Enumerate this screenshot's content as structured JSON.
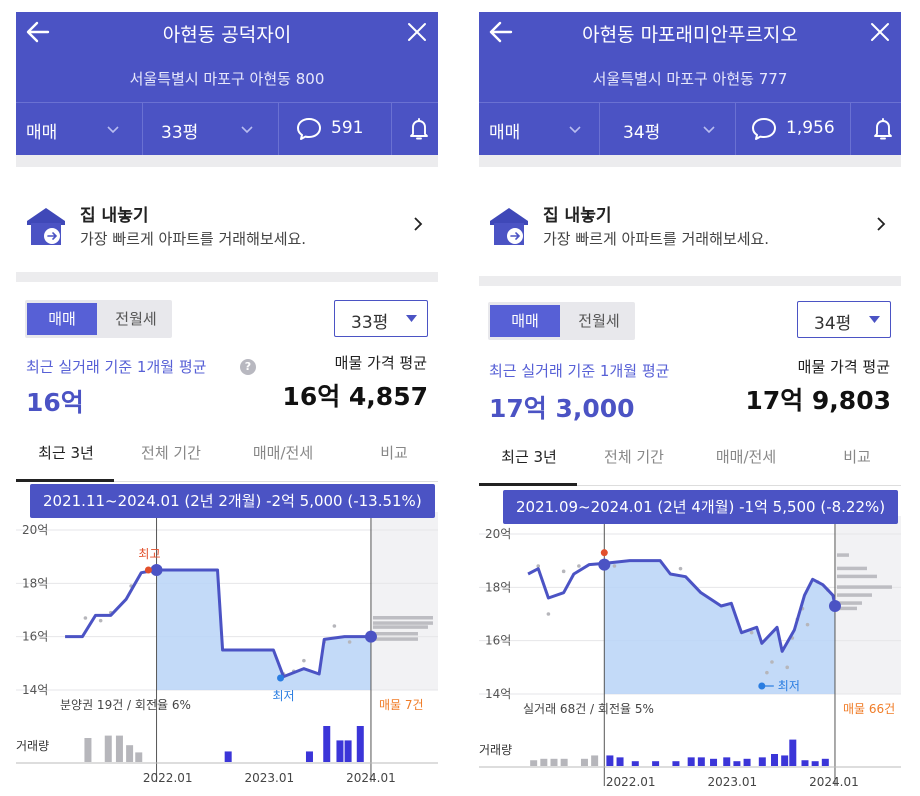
{
  "colors": {
    "brand": "#4b53c4",
    "accent": "#5760d6",
    "low_marker": "#2a7de1",
    "high_marker": "#e2502c",
    "asking": "#f07c27",
    "fill": "#b8d3f7"
  },
  "panels": [
    {
      "header": {
        "title": "아현동 공덕자이",
        "address": "서울특별시 마포구 아현동 800",
        "deal_type": "매매",
        "size": "33평",
        "comments": "591"
      },
      "listing": {
        "title": "집 내놓기",
        "subtitle": "가장 빠르게 아파트를 거래해보세요."
      },
      "seg": {
        "active": "매매",
        "inactive": "전월세"
      },
      "size_select": "33평",
      "avg_label": "최근 실거래 기준 1개월 평균",
      "avg_value": "16억",
      "ask_label": "매물 가격 평균",
      "ask_value": "16억 4,857",
      "tabs": [
        "최근 3년",
        "전체 기간",
        "매매/전세",
        "비교"
      ],
      "tooltip": "2021.11~2024.01 (2년 2개월)  -2억 5,000 (-13.51%)",
      "chart_data": {
        "type": "line",
        "y_unit": "억",
        "ylim": [
          14,
          20
        ],
        "y_ticks": [
          "20억",
          "18억",
          "16억",
          "14억"
        ],
        "x_ticks": [
          "2022.01",
          "2023.01",
          "2024.01"
        ],
        "series": [
          {
            "points": [
              [
                2021.0,
                16.0
              ],
              [
                2021.17,
                16.0
              ],
              [
                2021.3,
                16.8
              ],
              [
                2021.45,
                16.8
              ],
              [
                2021.6,
                17.4
              ],
              [
                2021.75,
                18.4
              ],
              [
                2021.9,
                18.5
              ],
              [
                2022.2,
                18.5
              ],
              [
                2022.5,
                18.5
              ],
              [
                2022.55,
                15.5
              ],
              [
                2022.9,
                15.5
              ],
              [
                2023.05,
                15.5
              ],
              [
                2023.15,
                14.5
              ],
              [
                2023.35,
                14.8
              ],
              [
                2023.5,
                14.6
              ],
              [
                2023.55,
                15.9
              ],
              [
                2023.75,
                16.0
              ],
              [
                2024.0,
                16.0
              ],
              [
                2024.01,
                16.0
              ]
            ]
          }
        ],
        "highlight": {
          "start": [
            2021.9,
            18.5
          ],
          "end": [
            2024.01,
            16.0
          ]
        },
        "max": {
          "x": 2021.82,
          "y": 18.5,
          "label": "최고"
        },
        "min": {
          "x": 2023.12,
          "y": 14.45,
          "label": "최저"
        },
        "footer_left": "분양권 19건 / 회전율 6%",
        "footer_right": "매물 7건",
        "volume_label": "거래량",
        "scatter": [
          [
            2021.2,
            16.7
          ],
          [
            2021.35,
            16.6
          ],
          [
            2021.45,
            16.9
          ],
          [
            2021.65,
            17.9
          ],
          [
            2023.15,
            14.6
          ],
          [
            2023.25,
            14.7
          ],
          [
            2023.35,
            15.1
          ],
          [
            2023.55,
            15.8
          ],
          [
            2023.65,
            16.4
          ],
          [
            2023.8,
            15.8
          ]
        ],
        "volume": [
          {
            "x": 2021.22,
            "v": 0.5,
            "k": "g"
          },
          {
            "x": 2021.42,
            "v": 0.55,
            "k": "g"
          },
          {
            "x": 2021.53,
            "v": 0.55,
            "k": "g"
          },
          {
            "x": 2021.63,
            "v": 0.35,
            "k": "g"
          },
          {
            "x": 2021.72,
            "v": 0.2,
            "k": "g"
          },
          {
            "x": 2022.6,
            "v": 0.22,
            "k": "b"
          },
          {
            "x": 2023.4,
            "v": 0.22,
            "k": "b"
          },
          {
            "x": 2023.57,
            "v": 0.75,
            "k": "b"
          },
          {
            "x": 2023.7,
            "v": 0.45,
            "k": "b"
          },
          {
            "x": 2023.78,
            "v": 0.45,
            "k": "b"
          },
          {
            "x": 2023.9,
            "v": 0.75,
            "k": "b"
          }
        ],
        "asking_bars": [
          [
            16.7,
            0.6
          ],
          [
            16.5,
            0.6
          ],
          [
            16.35,
            0.55
          ],
          [
            16.1,
            0.45
          ],
          [
            15.9,
            0.45
          ]
        ],
        "xlim": [
          2020.95,
          2024.65
        ]
      }
    },
    {
      "header": {
        "title": "아현동 마포래미안푸르지오",
        "address": "서울특별시 마포구 아현동 777",
        "deal_type": "매매",
        "size": "34평",
        "comments": "1,956"
      },
      "listing": {
        "title": "집 내놓기",
        "subtitle": "가장 빠르게 아파트를 거래해보세요."
      },
      "seg": {
        "active": "매매",
        "inactive": "전월세"
      },
      "size_select": "34평",
      "avg_label": "최근 실거래 기준 1개월 평균",
      "avg_value": "17억 3,000",
      "ask_label": "매물 가격 평균",
      "ask_value": "17억 9,803",
      "tabs": [
        "최근 3년",
        "전체 기간",
        "매매/전세",
        "비교"
      ],
      "tooltip": "2021.09~2024.01 (2년 4개월)  -1억 5,500 (-8.22%)",
      "chart_data": {
        "type": "line",
        "y_unit": "억",
        "ylim": [
          14,
          20
        ],
        "y_ticks": [
          "20억",
          "18억",
          "16억",
          "14억"
        ],
        "x_ticks": [
          "2022.01",
          "2023.01",
          "2024.01"
        ],
        "series": [
          {
            "points": [
              [
                2021.0,
                18.5
              ],
              [
                2021.1,
                18.7
              ],
              [
                2021.2,
                17.6
              ],
              [
                2021.35,
                17.8
              ],
              [
                2021.45,
                18.5
              ],
              [
                2021.6,
                18.85
              ],
              [
                2021.75,
                18.9
              ],
              [
                2022.0,
                19.0
              ],
              [
                2022.3,
                19.0
              ],
              [
                2022.4,
                18.5
              ],
              [
                2022.55,
                18.4
              ],
              [
                2022.7,
                17.8
              ],
              [
                2022.9,
                17.3
              ],
              [
                2023.0,
                17.4
              ],
              [
                2023.1,
                16.3
              ],
              [
                2023.25,
                16.5
              ],
              [
                2023.3,
                15.9
              ],
              [
                2023.45,
                16.5
              ],
              [
                2023.5,
                15.6
              ],
              [
                2023.62,
                16.4
              ],
              [
                2023.72,
                17.7
              ],
              [
                2023.8,
                18.3
              ],
              [
                2023.9,
                18.1
              ],
              [
                2024.0,
                17.7
              ],
              [
                2024.02,
                17.3
              ]
            ]
          }
        ],
        "highlight": {
          "start": [
            2021.75,
            18.85
          ],
          "end": [
            2024.02,
            17.3
          ]
        },
        "max": {
          "x": 2021.75,
          "y": 19.3,
          "label": ""
        },
        "min": {
          "x": 2023.3,
          "y": 14.3,
          "label": "최저"
        },
        "footer_left": "실거래 68건 / 회전율 5%",
        "footer_right": "매물 66건",
        "volume_label": "거래량",
        "scatter": [
          [
            2021.1,
            18.8
          ],
          [
            2021.2,
            17.0
          ],
          [
            2021.35,
            18.6
          ],
          [
            2021.5,
            18.8
          ],
          [
            2021.85,
            18.8
          ],
          [
            2022.5,
            18.7
          ],
          [
            2023.2,
            16.3
          ],
          [
            2023.35,
            14.8
          ],
          [
            2023.4,
            15.2
          ],
          [
            2023.55,
            15.0
          ],
          [
            2023.6,
            16.1
          ],
          [
            2023.65,
            16.8
          ],
          [
            2023.7,
            17.2
          ],
          [
            2023.75,
            16.6
          ],
          [
            2023.85,
            18.2
          ],
          [
            2023.95,
            17.9
          ]
        ],
        "volume": [
          {
            "x": 2021.05,
            "v": 0.12,
            "k": "g"
          },
          {
            "x": 2021.15,
            "v": 0.15,
            "k": "g"
          },
          {
            "x": 2021.25,
            "v": 0.15,
            "k": "g"
          },
          {
            "x": 2021.35,
            "v": 0.15,
            "k": "g"
          },
          {
            "x": 2021.55,
            "v": 0.15,
            "k": "g"
          },
          {
            "x": 2021.65,
            "v": 0.22,
            "k": "g"
          },
          {
            "x": 2021.8,
            "v": 0.22,
            "k": "b"
          },
          {
            "x": 2021.9,
            "v": 0.18,
            "k": "b"
          },
          {
            "x": 2022.05,
            "v": 0.1,
            "k": "b"
          },
          {
            "x": 2022.25,
            "v": 0.1,
            "k": "b"
          },
          {
            "x": 2022.45,
            "v": 0.1,
            "k": "b"
          },
          {
            "x": 2022.6,
            "v": 0.18,
            "k": "b"
          },
          {
            "x": 2022.7,
            "v": 0.18,
            "k": "b"
          },
          {
            "x": 2022.82,
            "v": 0.15,
            "k": "b"
          },
          {
            "x": 2022.95,
            "v": 0.18,
            "k": "b"
          },
          {
            "x": 2023.05,
            "v": 0.1,
            "k": "b"
          },
          {
            "x": 2023.15,
            "v": 0.15,
            "k": "b"
          },
          {
            "x": 2023.3,
            "v": 0.18,
            "k": "b"
          },
          {
            "x": 2023.42,
            "v": 0.25,
            "k": "b"
          },
          {
            "x": 2023.52,
            "v": 0.22,
            "k": "b"
          },
          {
            "x": 2023.6,
            "v": 0.55,
            "k": "b"
          },
          {
            "x": 2023.72,
            "v": 0.12,
            "k": "b"
          },
          {
            "x": 2023.82,
            "v": 0.1,
            "k": "b"
          },
          {
            "x": 2023.92,
            "v": 0.15,
            "k": "b"
          }
        ],
        "asking_bars": [
          [
            19.2,
            0.12
          ],
          [
            18.7,
            0.3
          ],
          [
            18.4,
            0.4
          ],
          [
            18.0,
            0.55
          ],
          [
            17.7,
            0.35
          ],
          [
            17.4,
            0.25
          ],
          [
            17.2,
            0.2
          ]
        ],
        "xlim": [
          2020.95,
          2024.65
        ]
      }
    }
  ]
}
